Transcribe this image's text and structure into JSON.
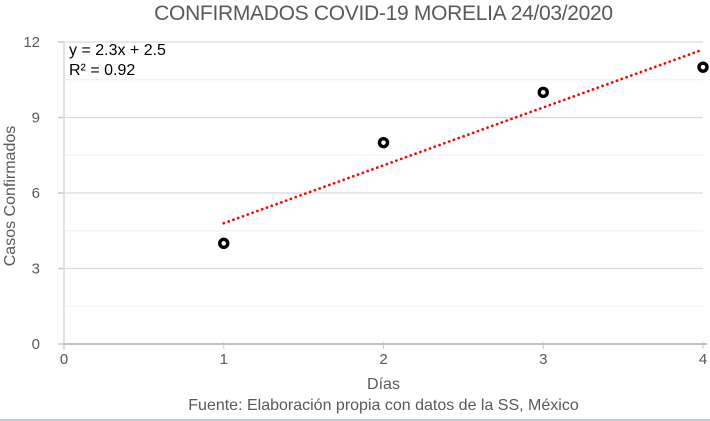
{
  "source_note": "Fuente: Elaboración propia con datos de la SS, México",
  "chart_data": {
    "type": "scatter",
    "title": "CONFIRMADOS COVID-19 MORELIA 24/03/2020",
    "xlabel": "Días",
    "ylabel": "Casos Confirmados",
    "points": [
      {
        "x": 1,
        "y": 4
      },
      {
        "x": 2,
        "y": 8
      },
      {
        "x": 3,
        "y": 10
      },
      {
        "x": 4,
        "y": 11
      }
    ],
    "xlim": [
      0,
      4
    ],
    "ylim": [
      0,
      12
    ],
    "x_ticks": [
      0,
      1,
      2,
      3,
      4
    ],
    "y_ticks": [
      0,
      3,
      6,
      9,
      12
    ],
    "y_minor_tick_interval": 1.5,
    "grid": true,
    "legend": "none",
    "marker": {
      "shape": "open-circle",
      "color": "#000000",
      "fill": "#ffffff"
    },
    "trendline": {
      "type": "linear",
      "slope": 2.3,
      "intercept": 2.5,
      "x_range": [
        1,
        4
      ],
      "equation_label": "y = 2.3x + 2.5",
      "r2_label": "R² = 0.92",
      "r_squared": 0.92,
      "style": "dotted",
      "color": "#FF0000"
    }
  },
  "colors": {
    "title_text": "#595959",
    "axis_text": "#595959",
    "equation_text": "#000000",
    "major_gridline": "#d9d9d9",
    "minor_gridline": "#f2f2f2",
    "axis_line": "#c0c0c0",
    "tick_mark": "#c9c9c9",
    "trendline": "#FF0000",
    "marker_stroke": "#000000",
    "marker_fill": "#ffffff",
    "bottom_border": "#bccfe2"
  }
}
